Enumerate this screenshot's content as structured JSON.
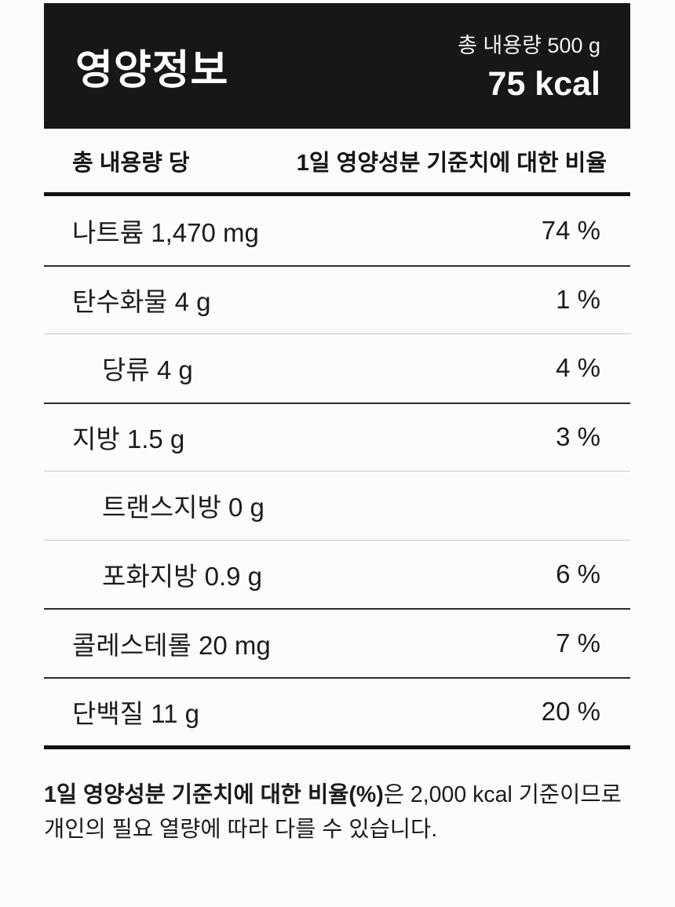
{
  "header": {
    "title": "영양정보",
    "total_amount": "총 내용량 500 g",
    "calories": "75 kcal"
  },
  "table": {
    "col_left": "총 내용량 당",
    "col_right": "1일 영양성분 기준치에 대한 비율",
    "rows": [
      {
        "label": "나트륨 1,470 mg",
        "percent": "74 %",
        "indent": false
      },
      {
        "label": "탄수화물 4 g",
        "percent": "1 %",
        "indent": false
      },
      {
        "label": "당류 4 g",
        "percent": "4 %",
        "indent": true
      },
      {
        "label": "지방 1.5 g",
        "percent": "3 %",
        "indent": false
      },
      {
        "label": "트랜스지방 0 g",
        "percent": "",
        "indent": true
      },
      {
        "label": "포화지방 0.9 g",
        "percent": "6 %",
        "indent": true
      },
      {
        "label": "콜레스테롤 20 mg",
        "percent": "7 %",
        "indent": false
      },
      {
        "label": "단백질 11 g",
        "percent": "20 %",
        "indent": false
      }
    ]
  },
  "footnote": {
    "bold": "1일 영양성분 기준치에 대한 비율(%)",
    "rest": "은 2,000 kcal 기준이므로 개인의 필요 열량에 따라 다를 수 있습니다."
  },
  "colors": {
    "header_bg": "#171717",
    "page_bg": "#fcfcfc",
    "text": "#1b1b1b",
    "divider_thin": "#c9c9c9",
    "divider_medium": "#2b2b2b",
    "divider_thick": "#111111"
  }
}
